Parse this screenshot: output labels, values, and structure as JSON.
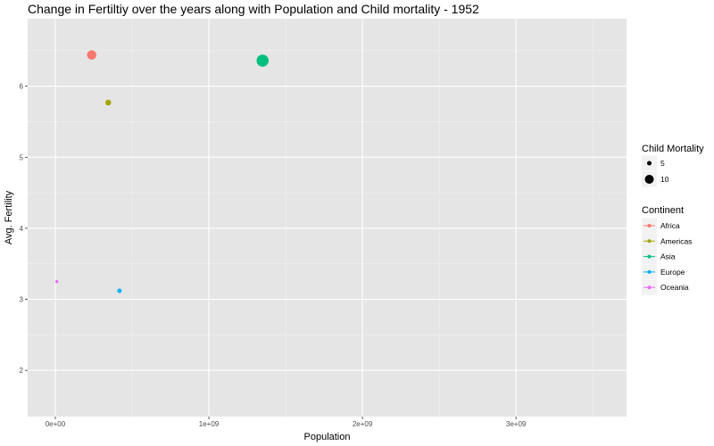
{
  "chart_data": {
    "type": "scatter",
    "title": "Change in Fertiltiy over the years along with Population and Child mortality -  1952",
    "xlabel": "Population",
    "ylabel": "Avg. Fertility",
    "xlim": [
      -180000000,
      3720000000
    ],
    "ylim": [
      1.35,
      6.95
    ],
    "x_ticks": [
      0,
      1000000000,
      2000000000,
      3000000000
    ],
    "x_tick_labels": [
      "0e+00",
      "1e+09",
      "2e+09",
      "3e+09"
    ],
    "y_ticks": [
      2,
      3,
      4,
      5,
      6
    ],
    "y_tick_labels": [
      "2",
      "3",
      "4",
      "5",
      "6"
    ],
    "grid": true,
    "legend_position": "right",
    "size_legend": {
      "title": "Child Mortality",
      "entries": [
        {
          "label": "5",
          "value": 5
        },
        {
          "label": "10",
          "value": 10
        }
      ]
    },
    "color_legend": {
      "title": "Continent",
      "entries": [
        {
          "label": "Africa",
          "color": "#F8766D"
        },
        {
          "label": "Americas",
          "color": "#A3A500"
        },
        {
          "label": "Asia",
          "color": "#00BF7D"
        },
        {
          "label": "Europe",
          "color": "#00B0F6"
        },
        {
          "label": "Oceania",
          "color": "#E76BF3"
        }
      ]
    },
    "points": [
      {
        "continent": "Africa",
        "x": 237000000,
        "y": 6.44,
        "size": 10.5
      },
      {
        "continent": "Americas",
        "x": 345000000,
        "y": 5.77,
        "size": 6.5
      },
      {
        "continent": "Asia",
        "x": 1350000000,
        "y": 6.36,
        "size": 13.5
      },
      {
        "continent": "Europe",
        "x": 418000000,
        "y": 3.12,
        "size": 5
      },
      {
        "continent": "Oceania",
        "x": 10000000,
        "y": 3.25,
        "size": 3.5
      }
    ]
  }
}
